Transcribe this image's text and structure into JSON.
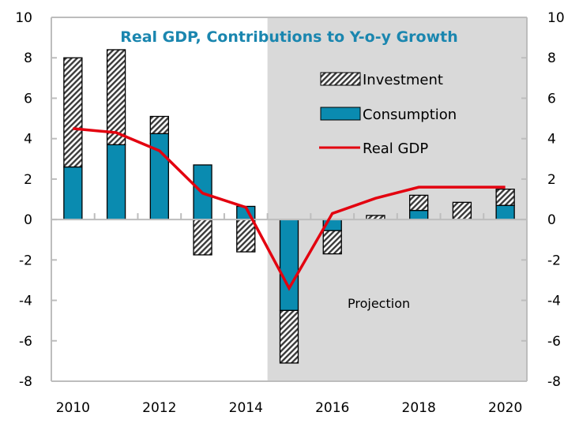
{
  "chart_data": {
    "type": "bar",
    "stacked": true,
    "title": "Real GDP, Contributions to Y-o-y Growth",
    "xlabel": "",
    "ylabel": "",
    "categories": [
      "2010",
      "2011",
      "2012",
      "2013",
      "2014",
      "2015",
      "2016",
      "2017",
      "2018",
      "2019",
      "2020"
    ],
    "x_tick_labels": [
      "2010",
      "2012",
      "2014",
      "2016",
      "2018",
      "2020"
    ],
    "y_tick_labels": [
      "10",
      "8",
      "6",
      "4",
      "2",
      "0",
      "-2",
      "-4",
      "-6",
      "-8"
    ],
    "ylim": [
      -8,
      10
    ],
    "y_ticks": [
      10,
      8,
      6,
      4,
      2,
      0,
      -2,
      -4,
      -6,
      -8
    ],
    "secondary_ylim": [
      -8,
      10
    ],
    "grid": false,
    "legend_position": "top-right",
    "series": [
      {
        "name": "Consumption",
        "kind": "bar",
        "color": "#0A8BB0",
        "values": [
          2.6,
          3.7,
          4.25,
          2.7,
          0.65,
          -4.5,
          -0.55,
          0.0,
          0.45,
          0.0,
          0.7
        ]
      },
      {
        "name": "Investment",
        "kind": "bar",
        "pattern": "diagonal-hatch",
        "values": [
          5.4,
          4.7,
          0.85,
          -1.75,
          -1.6,
          -2.6,
          -1.15,
          0.2,
          0.75,
          0.85,
          0.8
        ]
      },
      {
        "name": "Real GDP",
        "kind": "line",
        "color": "#E3000F",
        "values": [
          4.5,
          4.3,
          3.4,
          1.3,
          0.6,
          -3.4,
          0.3,
          1.05,
          1.6,
          1.6,
          1.6
        ]
      }
    ],
    "legend": [
      {
        "label": "Investment",
        "swatch": "hatch"
      },
      {
        "label": "Consumption",
        "swatch": "fill"
      },
      {
        "label": "Real GDP",
        "swatch": "line"
      }
    ],
    "projection": {
      "label": "Projection",
      "start_category": "2015",
      "shade_color": "#D9D9D9"
    }
  }
}
